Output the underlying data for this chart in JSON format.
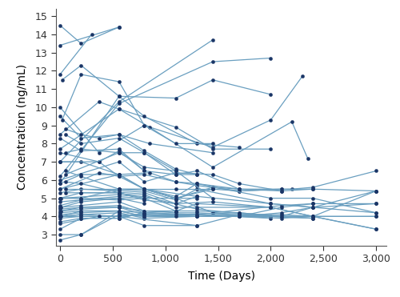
{
  "xlabel": "Time (Days)",
  "ylabel": "Concentration (ng/mL)",
  "xlim": [
    -40,
    3100
  ],
  "ylim": [
    2.4,
    15.4
  ],
  "yticks": [
    3,
    4,
    5,
    6,
    7,
    8,
    9,
    10,
    11,
    12,
    13,
    14,
    15
  ],
  "xticks": [
    0,
    500,
    1000,
    1500,
    2000,
    2500,
    3000
  ],
  "line_color": "#6a9fc0",
  "marker_color": "#1a3566",
  "patients": [
    {
      "x": [
        0,
        200,
        560
      ],
      "y": [
        14.5,
        13.5,
        14.4
      ]
    },
    {
      "x": [
        0,
        560
      ],
      "y": [
        13.4,
        14.4
      ]
    },
    {
      "x": [
        0,
        300
      ],
      "y": [
        11.8,
        14.0
      ]
    },
    {
      "x": [
        0,
        560,
        1450
      ],
      "y": [
        7.0,
        10.3,
        13.7
      ]
    },
    {
      "x": [
        0,
        560,
        1450,
        2000
      ],
      "y": [
        6.2,
        10.2,
        12.5,
        12.7
      ]
    },
    {
      "x": [
        0,
        560,
        1100,
        1450,
        2000
      ],
      "y": [
        5.8,
        10.6,
        10.5,
        11.5,
        10.7
      ]
    },
    {
      "x": [
        0,
        370,
        800,
        1450,
        2000,
        2300
      ],
      "y": [
        10.0,
        7.5,
        9.0,
        7.8,
        9.3,
        11.7
      ]
    },
    {
      "x": [
        0,
        560,
        850,
        1450,
        2200,
        2350
      ],
      "y": [
        7.7,
        9.9,
        8.9,
        6.7,
        9.2,
        7.2
      ]
    },
    {
      "x": [
        0,
        200,
        560,
        850,
        1450
      ],
      "y": [
        9.5,
        8.3,
        8.5,
        8.0,
        7.5
      ]
    },
    {
      "x": [
        0,
        370,
        560,
        1100,
        1450,
        2000
      ],
      "y": [
        8.5,
        10.3,
        9.9,
        8.9,
        7.7,
        7.7
      ]
    },
    {
      "x": [
        0,
        200,
        560,
        800
      ],
      "y": [
        8.3,
        7.6,
        7.7,
        6.5
      ]
    },
    {
      "x": [
        0,
        370,
        560,
        800,
        1100,
        1300,
        1700,
        2100
      ],
      "y": [
        7.5,
        7.0,
        7.6,
        6.5,
        6.3,
        6.5,
        5.5,
        5.5
      ]
    },
    {
      "x": [
        0,
        200,
        560,
        850,
        1100,
        1300,
        1700
      ],
      "y": [
        7.0,
        7.0,
        6.3,
        6.4,
        5.9,
        5.8,
        5.5
      ]
    },
    {
      "x": [
        0,
        370,
        560,
        800,
        1100,
        1300,
        1700,
        2200,
        2400,
        3000
      ],
      "y": [
        7.0,
        7.0,
        6.2,
        6.3,
        5.9,
        5.7,
        5.4,
        5.5,
        5.6,
        6.5
      ]
    },
    {
      "x": [
        0,
        560,
        800,
        1100,
        1450,
        1700,
        2100,
        2400,
        3000
      ],
      "y": [
        6.0,
        7.0,
        5.9,
        6.4,
        6.3,
        5.8,
        5.4,
        5.5,
        5.4
      ]
    },
    {
      "x": [
        0,
        200,
        560,
        800,
        1100,
        1450,
        1700,
        2100
      ],
      "y": [
        5.8,
        6.3,
        6.3,
        5.5,
        5.0,
        5.6,
        5.5,
        5.4
      ]
    },
    {
      "x": [
        0,
        370,
        560,
        800,
        1100,
        1450,
        1700,
        2100,
        2400
      ],
      "y": [
        5.5,
        6.4,
        6.2,
        5.5,
        5.0,
        5.5,
        5.4,
        5.5,
        5.5
      ]
    },
    {
      "x": [
        0,
        560,
        800,
        1100,
        1450,
        2100,
        2400,
        3000
      ],
      "y": [
        5.5,
        6.3,
        5.5,
        5.0,
        4.2,
        4.6,
        4.7,
        4.7
      ]
    },
    {
      "x": [
        0,
        200,
        560,
        800,
        1100,
        1300,
        2000,
        2400,
        3000
      ],
      "y": [
        5.3,
        5.5,
        5.4,
        5.5,
        5.1,
        5.8,
        5.0,
        5.0,
        4.2
      ]
    },
    {
      "x": [
        0,
        200,
        560,
        800,
        1100,
        1300,
        2000,
        2400,
        3000
      ],
      "y": [
        5.0,
        5.3,
        5.3,
        5.4,
        4.9,
        5.5,
        4.7,
        4.5,
        4.2
      ]
    },
    {
      "x": [
        0,
        560,
        800,
        1100,
        1300,
        2000,
        2400
      ],
      "y": [
        5.0,
        5.2,
        5.3,
        4.7,
        5.1,
        4.7,
        4.5
      ]
    },
    {
      "x": [
        0,
        200,
        560,
        800,
        1100,
        1300,
        2000,
        2400,
        3000
      ],
      "y": [
        5.0,
        5.0,
        4.9,
        5.0,
        4.3,
        4.7,
        4.5,
        4.0,
        3.3
      ]
    },
    {
      "x": [
        0,
        560,
        800,
        1100,
        1300,
        2000,
        2400,
        3000
      ],
      "y": [
        4.8,
        5.1,
        5.2,
        4.5,
        4.5,
        4.5,
        4.0,
        3.3
      ]
    },
    {
      "x": [
        0,
        200,
        560,
        800,
        1300,
        2000,
        2400
      ],
      "y": [
        4.6,
        4.9,
        5.0,
        5.1,
        4.4,
        4.0,
        3.9
      ]
    },
    {
      "x": [
        0,
        200,
        560,
        800,
        1100,
        1300,
        2000,
        2400
      ],
      "y": [
        4.5,
        4.6,
        4.8,
        4.3,
        4.2,
        4.2,
        4.0,
        3.9
      ]
    },
    {
      "x": [
        0,
        200,
        560,
        800,
        1300,
        2000
      ],
      "y": [
        4.4,
        4.5,
        4.6,
        4.2,
        4.1,
        3.9
      ]
    },
    {
      "x": [
        0,
        200,
        560,
        800,
        1300,
        1700,
        2100,
        2400
      ],
      "y": [
        4.3,
        4.4,
        4.5,
        4.1,
        4.0,
        4.0,
        4.5,
        4.7
      ]
    },
    {
      "x": [
        0,
        200,
        560,
        800,
        1100,
        1700,
        2100,
        2400,
        3000
      ],
      "y": [
        4.2,
        4.3,
        4.3,
        4.0,
        4.1,
        4.2,
        4.0,
        4.5,
        5.4
      ]
    },
    {
      "x": [
        0,
        200,
        560,
        800,
        1300,
        1700,
        2100,
        2400
      ],
      "y": [
        4.1,
        4.2,
        4.3,
        4.0,
        4.0,
        4.1,
        4.0,
        4.0
      ]
    },
    {
      "x": [
        0,
        200,
        560,
        800,
        1300,
        1700,
        2100,
        2400
      ],
      "y": [
        4.0,
        4.1,
        4.2,
        3.9,
        4.0,
        4.0,
        3.9,
        4.0
      ]
    },
    {
      "x": [
        0,
        200,
        560,
        800,
        1300,
        1700,
        2400,
        3000
      ],
      "y": [
        4.0,
        4.1,
        4.0,
        4.1,
        4.1,
        4.0,
        4.0,
        4.0
      ]
    },
    {
      "x": [
        0,
        200,
        560,
        1300,
        1700,
        2100,
        2400,
        3000
      ],
      "y": [
        4.0,
        4.0,
        4.0,
        3.5,
        4.1,
        4.1,
        4.0,
        4.0
      ]
    },
    {
      "x": [
        0,
        200,
        560,
        800,
        1300
      ],
      "y": [
        3.9,
        4.0,
        4.0,
        3.5,
        3.5
      ]
    },
    {
      "x": [
        0,
        200,
        560,
        800,
        1100,
        1300,
        1700
      ],
      "y": [
        3.7,
        3.9,
        3.9,
        4.2,
        4.1,
        4.1,
        4.0
      ]
    },
    {
      "x": [
        0,
        370,
        560,
        800,
        1300
      ],
      "y": [
        3.6,
        4.0,
        4.0,
        4.1,
        4.0
      ]
    },
    {
      "x": [
        0,
        200,
        560,
        800
      ],
      "y": [
        3.3,
        3.9,
        3.9,
        4.2
      ]
    },
    {
      "x": [
        0,
        200,
        560,
        800,
        1100,
        1300,
        1700,
        2100,
        2400,
        3000
      ],
      "y": [
        3.0,
        3.0,
        4.1,
        4.0,
        4.0,
        4.1,
        4.0,
        4.2,
        4.5,
        4.7
      ]
    },
    {
      "x": [
        0,
        200,
        560
      ],
      "y": [
        2.7,
        3.0,
        4.3
      ]
    },
    {
      "x": [
        50,
        200,
        370,
        560,
        800,
        1100,
        1300
      ],
      "y": [
        8.8,
        8.5,
        8.3,
        8.5,
        7.6,
        6.6,
        6.3
      ]
    },
    {
      "x": [
        50,
        200,
        560,
        800,
        1100,
        1300
      ],
      "y": [
        8.5,
        8.0,
        8.3,
        7.5,
        6.3,
        6.3
      ]
    },
    {
      "x": [
        50,
        200,
        560,
        800,
        1100
      ],
      "y": [
        7.5,
        7.7,
        7.5,
        7.5,
        6.5
      ]
    },
    {
      "x": [
        20,
        200,
        560,
        800,
        1300,
        1700
      ],
      "y": [
        11.5,
        12.3,
        10.6,
        9.5,
        8.0,
        7.8
      ]
    },
    {
      "x": [
        20,
        200,
        560,
        800,
        1100,
        1450
      ],
      "y": [
        9.3,
        11.8,
        11.4,
        9.0,
        8.0,
        8.0
      ]
    },
    {
      "x": [
        50,
        560,
        800,
        1100,
        1450
      ],
      "y": [
        6.3,
        7.5,
        6.7,
        6.5,
        5.0
      ]
    },
    {
      "x": [
        50,
        200,
        560,
        800,
        1300
      ],
      "y": [
        6.5,
        6.2,
        5.5,
        5.5,
        5.1
      ]
    },
    {
      "x": [
        50,
        200,
        560,
        800,
        1100,
        1450,
        2000
      ],
      "y": [
        5.9,
        5.8,
        5.3,
        4.9,
        4.7,
        4.8,
        4.5
      ]
    },
    {
      "x": [
        50,
        560,
        800,
        1100,
        1450
      ],
      "y": [
        5.5,
        5.5,
        5.5,
        5.5,
        5.5
      ]
    },
    {
      "x": [
        50,
        200,
        560,
        800,
        1100,
        1300
      ],
      "y": [
        5.3,
        5.3,
        5.3,
        5.0,
        5.0,
        5.0
      ]
    },
    {
      "x": [
        10,
        200,
        560
      ],
      "y": [
        5.0,
        5.0,
        5.5
      ]
    },
    {
      "x": [
        10,
        200,
        560,
        800
      ],
      "y": [
        4.5,
        4.8,
        5.0,
        4.7
      ]
    },
    {
      "x": [
        10,
        200,
        560,
        800,
        1100
      ],
      "y": [
        4.3,
        4.5,
        4.5,
        4.3,
        4.3
      ]
    },
    {
      "x": [
        10,
        200,
        560,
        800,
        1100,
        1300,
        1700,
        2100,
        2400,
        3000
      ],
      "y": [
        4.0,
        4.3,
        4.3,
        4.2,
        4.3,
        4.3,
        4.2,
        4.0,
        4.0,
        5.4
      ]
    }
  ]
}
